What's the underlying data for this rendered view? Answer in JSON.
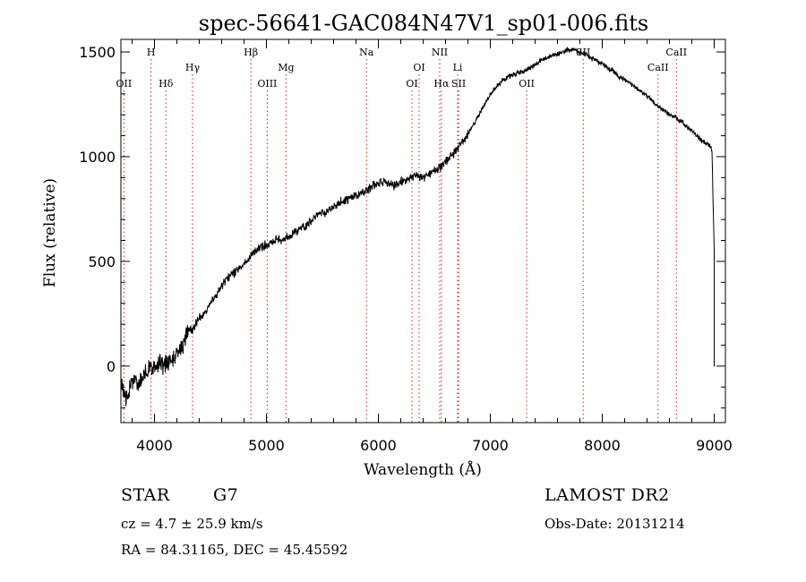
{
  "chart_data": {
    "type": "line",
    "title": "spec-56641-GAC084N47V1_sp01-006.fits",
    "xlabel": "Wavelength (Å)",
    "ylabel": "Flux (relative)",
    "xlim": [
      3700,
      9100
    ],
    "ylim": [
      -270,
      1560
    ],
    "xticks": [
      4000,
      5000,
      6000,
      7000,
      8000,
      9000
    ],
    "yticks": [
      0,
      500,
      1000,
      1500
    ],
    "grid": false,
    "series": [
      {
        "x": [
          3700,
          3750,
          3800,
          3850,
          3900,
          3950,
          4000,
          4050,
          4100,
          4150,
          4200,
          4250,
          4300,
          4350,
          4400,
          4450,
          4500,
          4550,
          4600,
          4650,
          4700,
          4750,
          4800,
          4850,
          4900,
          4950,
          5000,
          5050,
          5100,
          5150,
          5200,
          5250,
          5300,
          5350,
          5400,
          5450,
          5500,
          5550,
          5600,
          5650,
          5700,
          5750,
          5800,
          5850,
          5900,
          5950,
          6000,
          6050,
          6100,
          6150,
          6200,
          6250,
          6300,
          6350,
          6400,
          6450,
          6500,
          6550,
          6600,
          6650,
          6700,
          6750,
          6800,
          6850,
          6900,
          6950,
          7000,
          7050,
          7100,
          7150,
          7200,
          7250,
          7300,
          7350,
          7400,
          7450,
          7500,
          7550,
          7600,
          7650,
          7700,
          7750,
          7800,
          7850,
          7900,
          7950,
          8000,
          8050,
          8100,
          8150,
          8200,
          8250,
          8300,
          8350,
          8400,
          8450,
          8500,
          8550,
          8600,
          8650,
          8700,
          8750,
          8800,
          8850,
          8900,
          8950,
          8980,
          9000,
          9000,
          9005
        ],
        "y": [
          -80,
          -160,
          -60,
          -90,
          -40,
          -20,
          -10,
          20,
          0,
          40,
          60,
          90,
          170,
          180,
          230,
          250,
          300,
          340,
          380,
          420,
          440,
          470,
          490,
          520,
          550,
          570,
          580,
          600,
          610,
          600,
          620,
          640,
          660,
          670,
          690,
          720,
          730,
          740,
          760,
          780,
          790,
          800,
          810,
          830,
          840,
          860,
          870,
          880,
          870,
          860,
          880,
          890,
          900,
          910,
          900,
          920,
          930,
          950,
          980,
          1000,
          1030,
          1070,
          1110,
          1150,
          1200,
          1250,
          1300,
          1330,
          1360,
          1380,
          1390,
          1400,
          1410,
          1420,
          1440,
          1460,
          1470,
          1480,
          1490,
          1500,
          1510,
          1510,
          1500,
          1490,
          1470,
          1460,
          1440,
          1420,
          1410,
          1380,
          1370,
          1350,
          1330,
          1310,
          1290,
          1270,
          1240,
          1220,
          1200,
          1190,
          1170,
          1150,
          1120,
          1100,
          1070,
          1060,
          1030,
          550,
          0,
          0
        ]
      }
    ],
    "lines": [
      {
        "label": "OII",
        "x": 3727,
        "row": 3
      },
      {
        "label": "H",
        "x": 3969,
        "row": 1
      },
      {
        "label": "Hδ",
        "x": 4102,
        "row": 3
      },
      {
        "label": "Hγ",
        "x": 4340,
        "row": 2
      },
      {
        "label": "Hβ",
        "x": 4861,
        "row": 1
      },
      {
        "label": "OIII",
        "x": 5007,
        "row": 3
      },
      {
        "label": "Mg",
        "x": 5175,
        "row": 2
      },
      {
        "label": "Na",
        "x": 5894,
        "row": 1
      },
      {
        "label": "OI",
        "x": 6300,
        "row": 3
      },
      {
        "label": "OI",
        "x": 6364,
        "row": 2
      },
      {
        "label": "NII",
        "x": 6548,
        "row": 1
      },
      {
        "label": "Hα",
        "x": 6563,
        "row": 3
      },
      {
        "label": "Li",
        "x": 6708,
        "row": 2
      },
      {
        "label": "SII",
        "x": 6717,
        "row": 3
      },
      {
        "label": "OII",
        "x": 7325,
        "row": 3
      },
      {
        "label": "SII",
        "x": 7830,
        "row": 1
      },
      {
        "label": "CaII",
        "x": 8498,
        "row": 2
      },
      {
        "label": "CaII",
        "x": 8662,
        "row": 1
      }
    ]
  },
  "info": {
    "class": "STAR",
    "subclass": "G7",
    "survey": "LAMOST DR2",
    "cz": "cz = 4.7 ± 25.9 km/s",
    "obs_date": "Obs-Date: 20131214",
    "radec": "RA =  84.31165, DEC =  45.45592"
  }
}
